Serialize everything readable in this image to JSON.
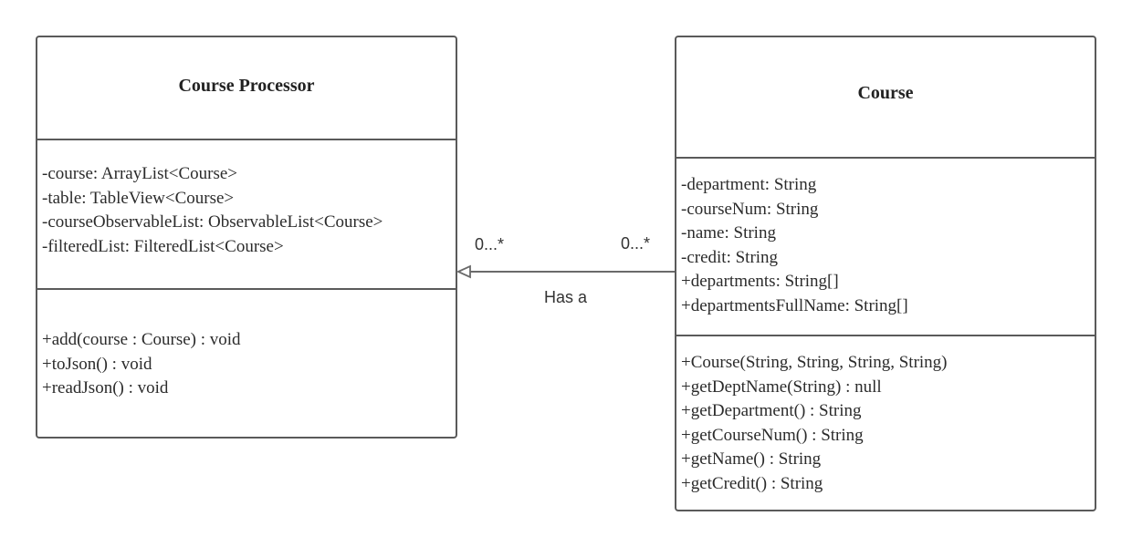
{
  "classes": {
    "processor": {
      "name": "Course Processor",
      "attributes": [
        "-course: ArrayList<Course>",
        "-table: TableView<Course>",
        "-courseObservableList: ObservableList<Course>",
        "-filteredList: FilteredList<Course>"
      ],
      "operations": [
        "+add(course : Course) : void",
        "+toJson() : void",
        "+readJson() : void"
      ]
    },
    "course": {
      "name": "Course",
      "attributes": [
        "-department: String",
        "-courseNum: String",
        "-name: String",
        "-credit: String",
        "+departments: String[]",
        "+departmentsFullName: String[]"
      ],
      "operations": [
        "+Course(String, String, String, String)",
        "+getDeptName(String) : null",
        "+getDepartment() : String",
        "+getCourseNum() : String",
        "+getName() : String",
        "+getCredit() : String"
      ]
    }
  },
  "association": {
    "label": "Has a",
    "source_multiplicity": "0...*",
    "target_multiplicity": "0...*"
  }
}
